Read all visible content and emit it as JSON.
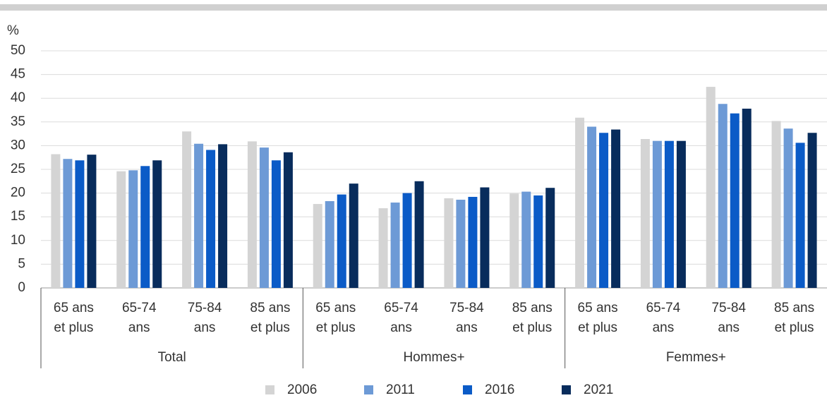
{
  "chart_data": {
    "type": "bar",
    "y_label": "%",
    "groups": [
      "Total",
      "Hommes+",
      "Femmes+"
    ],
    "categories": [
      [
        "65 ans",
        "et plus"
      ],
      [
        "65-74",
        "ans"
      ],
      [
        "75-84",
        "ans"
      ],
      [
        "85 ans",
        "et plus"
      ],
      [
        "65 ans",
        "et plus"
      ],
      [
        "65-74",
        "ans"
      ],
      [
        "75-84",
        "ans"
      ],
      [
        "85 ans",
        "et plus"
      ],
      [
        "65 ans",
        "et plus"
      ],
      [
        "65-74",
        "ans"
      ],
      [
        "75-84",
        "ans"
      ],
      [
        "85 ans",
        "et plus"
      ]
    ],
    "series": [
      {
        "name": "2006",
        "color": "#d4d4d4",
        "values": [
          28.2,
          24.6,
          33,
          30.9,
          17.7,
          16.8,
          18.9,
          19.9,
          35.9,
          31.4,
          42.4,
          35.2
        ]
      },
      {
        "name": "2011",
        "color": "#6d9ad6",
        "values": [
          27.2,
          24.8,
          30.4,
          29.6,
          18.3,
          18,
          18.6,
          20.3,
          34,
          31,
          38.8,
          33.6
        ]
      },
      {
        "name": "2016",
        "color": "#0b5bc7",
        "values": [
          26.9,
          25.7,
          29.1,
          26.9,
          19.7,
          20,
          19.2,
          19.5,
          32.7,
          31,
          36.8,
          30.6
        ]
      },
      {
        "name": "2021",
        "color": "#082c5c",
        "values": [
          28.1,
          26.9,
          30.3,
          28.6,
          22,
          22.5,
          21.2,
          21.1,
          33.4,
          31,
          37.8,
          32.7
        ]
      }
    ],
    "ylim": [
      0,
      50
    ],
    "yticks": [
      0,
      5,
      10,
      15,
      20,
      25,
      30,
      35,
      40,
      45,
      50
    ],
    "grid": true
  }
}
